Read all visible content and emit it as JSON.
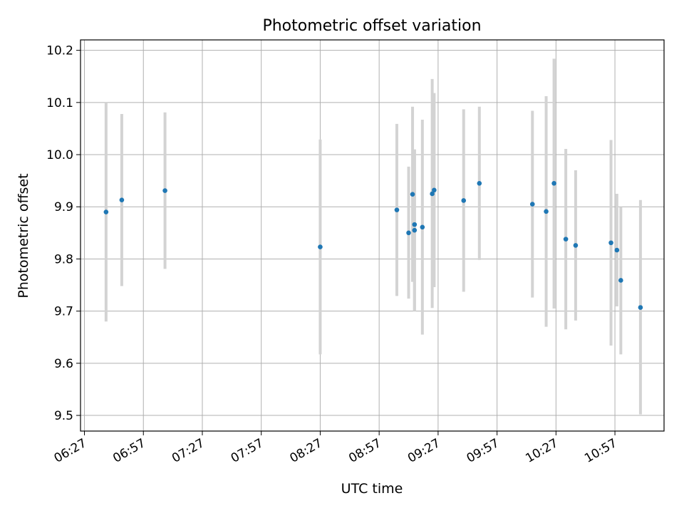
{
  "chart_data": {
    "type": "scatter",
    "title": "Photometric offset variation",
    "xlabel": "UTC time",
    "ylabel": "Photometric offset",
    "x_type": "time",
    "xlim": [
      "06:25",
      "11:22"
    ],
    "ylim": [
      9.47,
      10.22
    ],
    "x_ticks": [
      "06:27",
      "06:57",
      "07:27",
      "07:57",
      "08:27",
      "08:57",
      "09:27",
      "09:57",
      "10:27",
      "10:57"
    ],
    "y_ticks": [
      9.5,
      9.6,
      9.7,
      9.8,
      9.9,
      10.0,
      10.1,
      10.2
    ],
    "y_tick_labels": [
      "9.5",
      "9.6",
      "9.7",
      "9.8",
      "9.9",
      "10.0",
      "10.1",
      "10.2"
    ],
    "grid": true,
    "point_color": "#1f77b4",
    "errorbar_color": "#d3d3d3",
    "points": [
      {
        "x": "06:38",
        "y": 9.89,
        "err_low": 9.68,
        "err_high": 10.1
      },
      {
        "x": "06:46",
        "y": 9.913,
        "err_low": 9.748,
        "err_high": 10.078
      },
      {
        "x": "07:08",
        "y": 9.931,
        "err_low": 9.781,
        "err_high": 10.081
      },
      {
        "x": "08:27",
        "y": 9.823,
        "err_low": 9.617,
        "err_high": 10.029
      },
      {
        "x": "09:06",
        "y": 9.894,
        "err_low": 9.729,
        "err_high": 10.059
      },
      {
        "x": "09:12",
        "y": 9.85,
        "err_low": 9.724,
        "err_high": 9.977
      },
      {
        "x": "09:14",
        "y": 9.924,
        "err_low": 9.756,
        "err_high": 10.092
      },
      {
        "x": "09:15",
        "y": 9.866,
        "err_low": 9.7,
        "err_high": 10.01
      },
      {
        "x": "09:15",
        "y": 9.855,
        "err_low": 9.7,
        "err_high": 10.01
      },
      {
        "x": "09:19",
        "y": 9.861,
        "err_low": 9.655,
        "err_high": 10.067
      },
      {
        "x": "09:24",
        "y": 9.925,
        "err_low": 9.706,
        "err_high": 10.145
      },
      {
        "x": "09:25",
        "y": 9.932,
        "err_low": 9.746,
        "err_high": 10.118
      },
      {
        "x": "09:40",
        "y": 9.912,
        "err_low": 9.737,
        "err_high": 10.087
      },
      {
        "x": "09:48",
        "y": 9.945,
        "err_low": 9.798,
        "err_high": 10.092
      },
      {
        "x": "10:15",
        "y": 9.905,
        "err_low": 9.726,
        "err_high": 10.084
      },
      {
        "x": "10:22",
        "y": 9.891,
        "err_low": 9.67,
        "err_high": 10.112
      },
      {
        "x": "10:26",
        "y": 9.945,
        "err_low": 9.705,
        "err_high": 10.184
      },
      {
        "x": "10:32",
        "y": 9.838,
        "err_low": 9.665,
        "err_high": 10.011
      },
      {
        "x": "10:37",
        "y": 9.826,
        "err_low": 9.682,
        "err_high": 9.97
      },
      {
        "x": "10:55",
        "y": 9.831,
        "err_low": 9.634,
        "err_high": 10.028
      },
      {
        "x": "10:58",
        "y": 9.817,
        "err_low": 9.709,
        "err_high": 9.925
      },
      {
        "x": "11:00",
        "y": 9.759,
        "err_low": 9.617,
        "err_high": 9.9
      },
      {
        "x": "11:10",
        "y": 9.707,
        "err_low": 9.502,
        "err_high": 9.913
      }
    ]
  }
}
